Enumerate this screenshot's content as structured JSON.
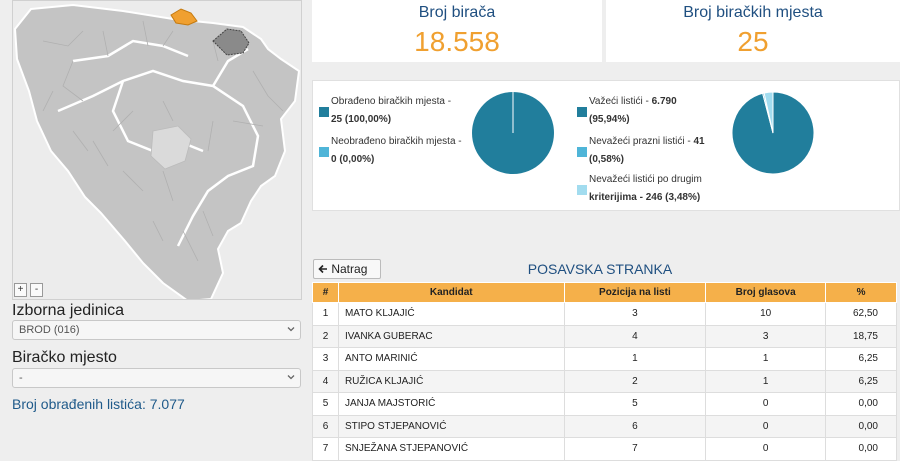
{
  "zoom": {
    "in_label": "+",
    "out_label": "-"
  },
  "filters": {
    "unit_label": "Izborna jedinica",
    "unit_value": "BROD (016)",
    "station_label": "Biračko mjesto",
    "station_value": "-"
  },
  "processed_text": "Broj obrađenih listića: 7.077",
  "stats": {
    "voters_title": "Broj birača",
    "voters_value": "18.558",
    "stations_title": "Broj biračkih mjesta",
    "stations_value": "25"
  },
  "colors": {
    "dark": "#217e9c",
    "mid": "#4fb5d8",
    "light": "#a2dcef",
    "accent": "#f0a030",
    "header": "#f5b04a"
  },
  "pie1": {
    "items": [
      {
        "line1": "Obrađeno biračkih mjesta -",
        "line2": "25 (100,00%)",
        "value": 25
      },
      {
        "line1": "Neobrađeno biračkih mjesta -",
        "line2": "0 (0,00%)",
        "value": 0
      }
    ]
  },
  "pie2": {
    "items": [
      {
        "line1": "Važeći listići - ",
        "bold1": "6.790",
        "line2": "(95,94%)",
        "value": 6790
      },
      {
        "line1": "Nevažeći prazni listići - ",
        "bold1": "41",
        "line2": "(0,58%)",
        "value": 41
      },
      {
        "line1": "Nevažeći listići po drugim",
        "bold1": "",
        "line2": "kriterijima - 246 (3,48%)",
        "value": 246
      }
    ]
  },
  "back_label": "Natrag",
  "party_title": "POSAVSKA STRANKA",
  "table": {
    "headers": [
      "#",
      "Kandidat",
      "Pozicija na listi",
      "Broj glasova",
      "%"
    ],
    "rows": [
      [
        "1",
        "MATO KLJAJIĆ",
        "3",
        "10",
        "62,50"
      ],
      [
        "2",
        "IVANKA GUBERAC",
        "4",
        "3",
        "18,75"
      ],
      [
        "3",
        "ANTO MARINIĆ",
        "1",
        "1",
        "6,25"
      ],
      [
        "4",
        "RUŽICA KLJAJIĆ",
        "2",
        "1",
        "6,25"
      ],
      [
        "5",
        "JANJA MAJSTORIĆ",
        "5",
        "0",
        "0,00"
      ],
      [
        "6",
        "STIPO STJEPANOVIĆ",
        "6",
        "0",
        "0,00"
      ],
      [
        "7",
        "SNJEŽANA STJEPANOVIĆ",
        "7",
        "0",
        "0,00"
      ]
    ]
  }
}
